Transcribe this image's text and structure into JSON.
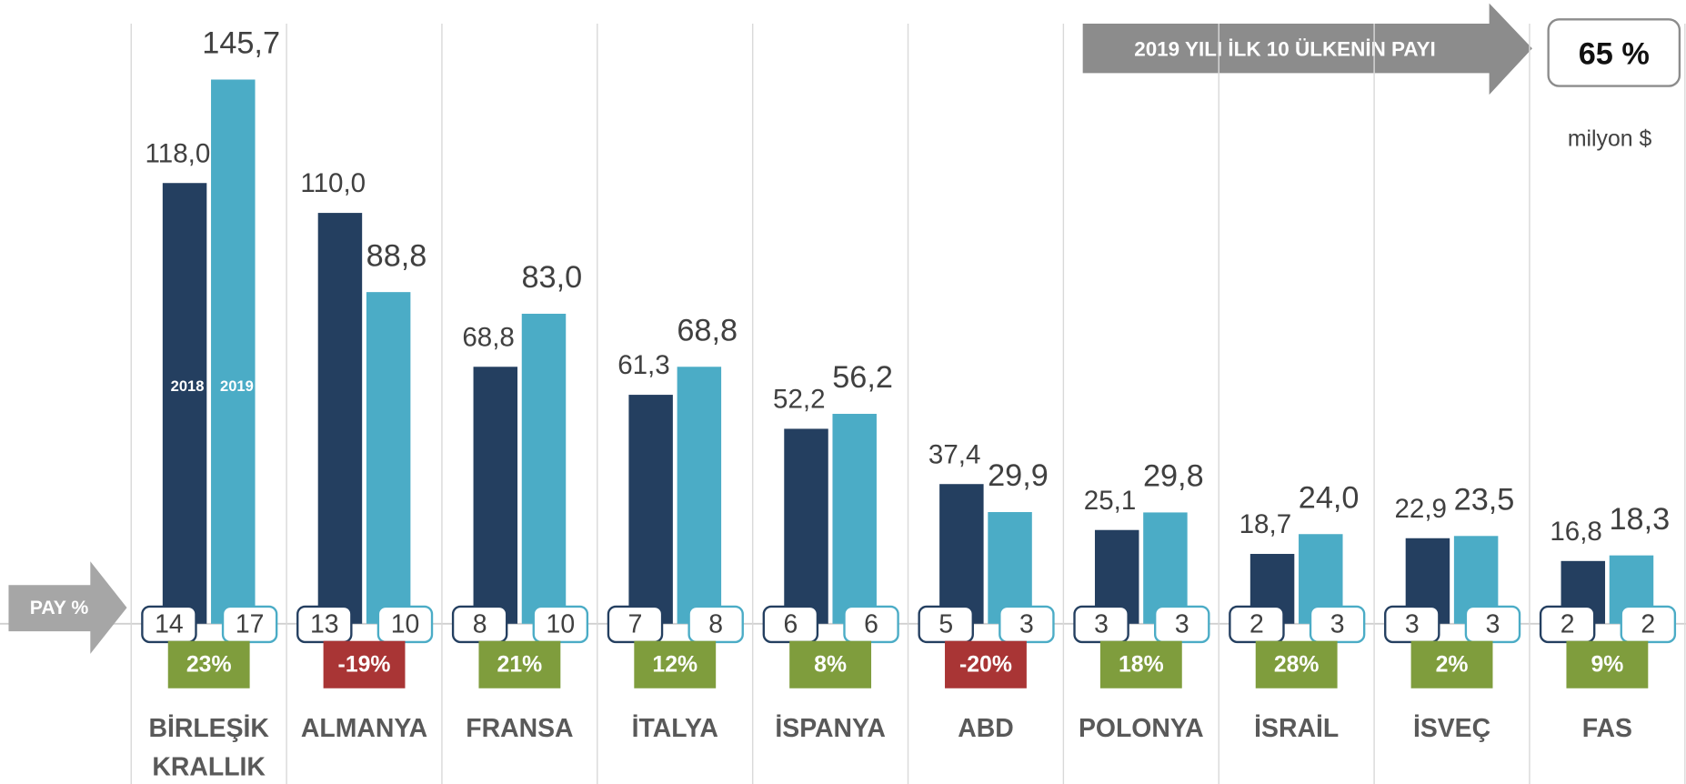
{
  "chart_data": {
    "type": "bar",
    "categories": [
      "BİRLEŞİK KRALLIK",
      "ALMANYA",
      "FRANSA",
      "İTALYA",
      "İSPANYA",
      "ABD",
      "POLONYA",
      "İSRAİL",
      "İSVEÇ",
      "FAS"
    ],
    "series": [
      {
        "name": "2018",
        "color": "#243f60",
        "values": [
          118.0,
          110.0,
          68.8,
          61.3,
          52.2,
          37.4,
          25.1,
          18.7,
          22.9,
          16.8
        ],
        "value_labels": [
          "118,0",
          "110,0",
          "68,8",
          "61,3",
          "52,2",
          "37,4",
          "25,1",
          "18,7",
          "22,9",
          "16,8"
        ],
        "shares": [
          14,
          13,
          8,
          7,
          6,
          5,
          3,
          2,
          3,
          2
        ]
      },
      {
        "name": "2019",
        "color": "#4bacc6",
        "values": [
          145.7,
          88.8,
          83.0,
          68.8,
          56.2,
          29.9,
          29.8,
          24.0,
          23.5,
          18.3
        ],
        "value_labels": [
          "145,7",
          "88,8",
          "83,0",
          "68,8",
          "56,2",
          "29,9",
          "29,8",
          "24,0",
          "23,5",
          "18,3"
        ],
        "shares": [
          17,
          10,
          10,
          8,
          6,
          3,
          3,
          3,
          3,
          2
        ]
      }
    ],
    "changes": [
      {
        "value": 23,
        "label": "23%"
      },
      {
        "value": -19,
        "label": "-19%"
      },
      {
        "value": 21,
        "label": "21%"
      },
      {
        "value": 12,
        "label": "12%"
      },
      {
        "value": 8,
        "label": "8%"
      },
      {
        "value": -20,
        "label": "-20%"
      },
      {
        "value": 18,
        "label": "18%"
      },
      {
        "value": 28,
        "label": "28%"
      },
      {
        "value": 2,
        "label": "2%"
      },
      {
        "value": 9,
        "label": "9%"
      }
    ],
    "share_label": "PAY %",
    "top10_label": "2019 YILI İLK 10 ÜLKENİN PAYI",
    "top10_share": {
      "value": 65,
      "label": "65 %"
    },
    "unit": "milyon $",
    "ylim": [
      0,
      167
    ]
  }
}
